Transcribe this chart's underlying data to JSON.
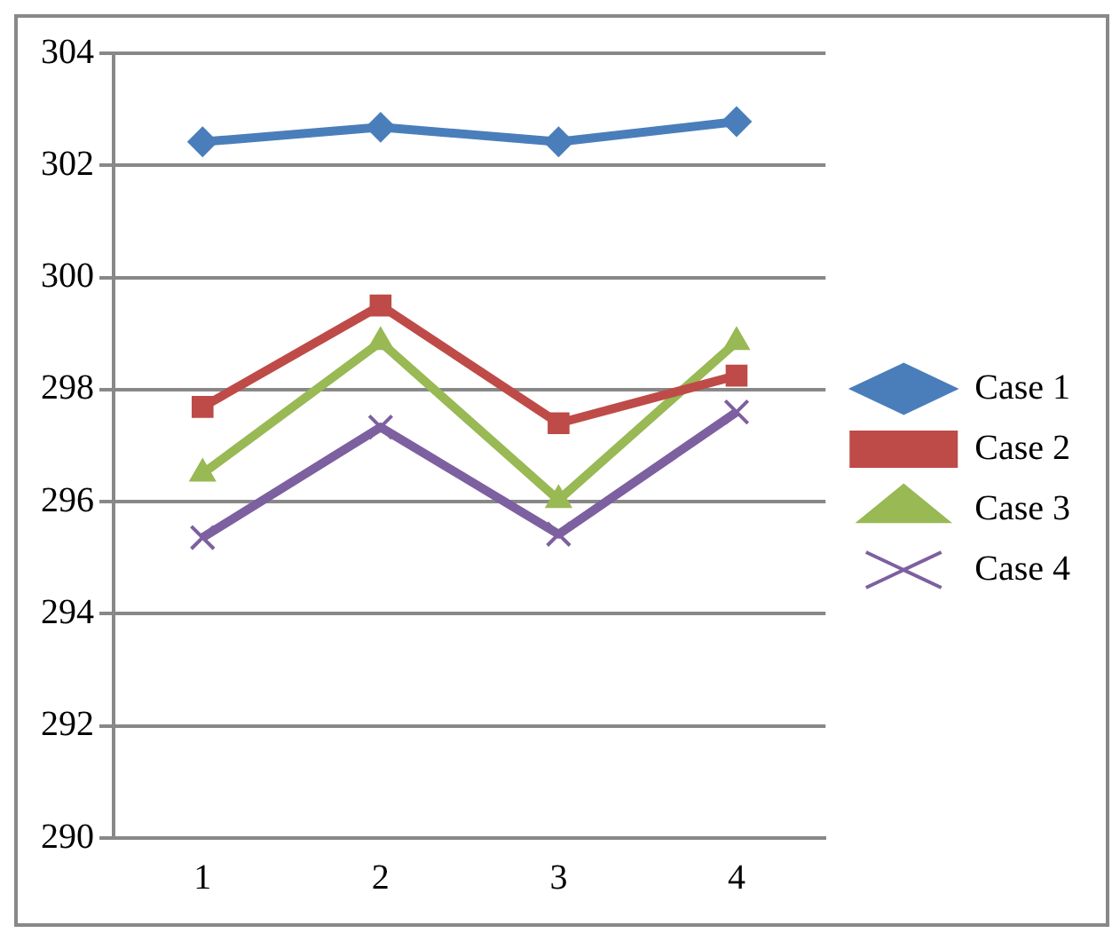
{
  "chart_data": {
    "type": "line",
    "categories": [
      "1",
      "2",
      "3",
      "4"
    ],
    "ylim": [
      290,
      304
    ],
    "yticks": [
      290,
      292,
      294,
      296,
      298,
      300,
      302,
      304
    ],
    "grid": "y",
    "legend": "right",
    "line_style": "solid",
    "series": [
      {
        "name": "Case 1",
        "color": "#4a7ebb",
        "marker": "diamond",
        "values": [
          302.42,
          302.68,
          302.42,
          302.78
        ]
      },
      {
        "name": "Case 2",
        "color": "#be4b48",
        "marker": "square",
        "values": [
          297.69,
          299.5,
          297.4,
          298.25
        ]
      },
      {
        "name": "Case 3",
        "color": "#98b954",
        "marker": "triangle",
        "values": [
          296.5,
          298.85,
          296.03,
          298.85
        ]
      },
      {
        "name": "Case 4",
        "color": "#7d60a0",
        "marker": "cross",
        "values": [
          295.36,
          297.33,
          295.42,
          297.6
        ]
      }
    ]
  }
}
